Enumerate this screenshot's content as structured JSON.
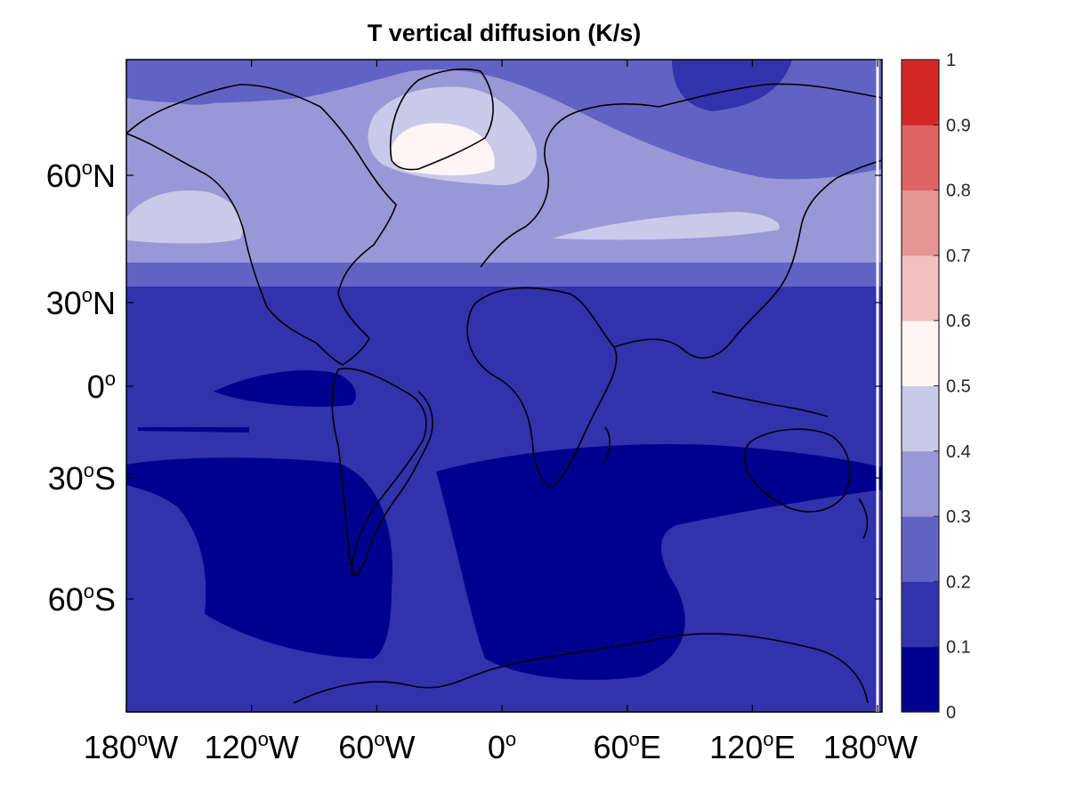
{
  "title": "T vertical diffusion (K/s)",
  "y_ticks": [
    {
      "base": "60",
      "deg": "o",
      "hemi": "N",
      "lat": 60
    },
    {
      "base": "30",
      "deg": "o",
      "hemi": "N",
      "lat": 30
    },
    {
      "base": "0",
      "deg": "o",
      "hemi": "",
      "lat": 0
    },
    {
      "base": "30",
      "deg": "o",
      "hemi": "S",
      "lat": -30
    },
    {
      "base": "60",
      "deg": "o",
      "hemi": "S",
      "lat": -60
    }
  ],
  "x_ticks": [
    {
      "base": "180",
      "deg": "o",
      "hemi": "W",
      "lon": -180
    },
    {
      "base": "120",
      "deg": "o",
      "hemi": "W",
      "lon": -120
    },
    {
      "base": "60",
      "deg": "o",
      "hemi": "W",
      "lon": -60
    },
    {
      "base": "0",
      "deg": "o",
      "hemi": "",
      "lon": 0
    },
    {
      "base": "60",
      "deg": "o",
      "hemi": "E",
      "lon": 60
    },
    {
      "base": "120",
      "deg": "o",
      "hemi": "E",
      "lon": 120
    },
    {
      "base": "180",
      "deg": "o",
      "hemi": "W",
      "lon": 180
    }
  ],
  "colorbar": {
    "min": 0,
    "max": 1,
    "labels": [
      "0",
      "0.1",
      "0.2",
      "0.3",
      "0.4",
      "0.5",
      "0.6",
      "0.7",
      "0.8",
      "0.9",
      "1"
    ],
    "colors": [
      "#00008f",
      "#3232ad",
      "#6262c4",
      "#9898d6",
      "#c9c9e9",
      "#fff5f5",
      "#f1c0c0",
      "#e69494",
      "#de6464",
      "#d42828"
    ]
  },
  "map": {
    "type": "contourf",
    "lon_range": [
      -180,
      180
    ],
    "lat_range": [
      -90,
      90
    ],
    "projection": "mercator-like",
    "coastlines": true
  }
}
